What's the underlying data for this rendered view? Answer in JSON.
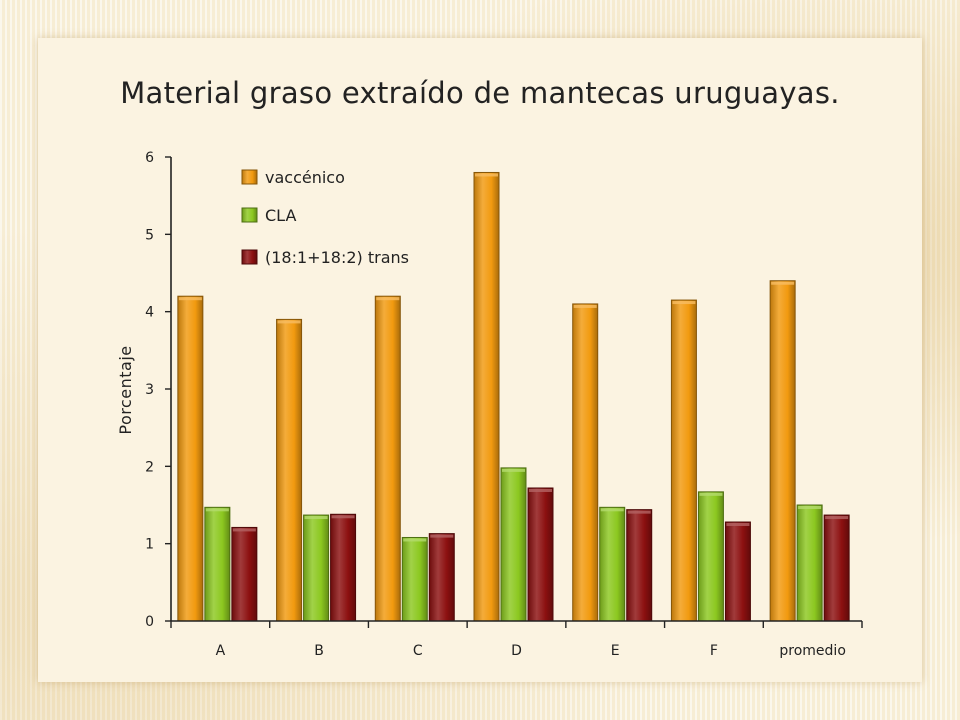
{
  "chart_data": {
    "type": "bar",
    "title": "Material graso extraído de mantecas uruguayas.",
    "xlabel": "",
    "ylabel": "Porcentaje",
    "ylim": [
      0,
      6
    ],
    "yticks": [
      0,
      1,
      2,
      3,
      4,
      5,
      6
    ],
    "grid": false,
    "legend_position": "top-left",
    "categories": [
      "A",
      "B",
      "C",
      "D",
      "E",
      "F",
      "promedio"
    ],
    "series": [
      {
        "name": "vaccénico",
        "color": "#f29a0f",
        "values": [
          4.2,
          3.9,
          4.2,
          5.8,
          4.1,
          4.15,
          4.4
        ]
      },
      {
        "name": "CLA",
        "color": "#8cc820",
        "values": [
          1.47,
          1.37,
          1.08,
          1.98,
          1.47,
          1.67,
          1.5
        ]
      },
      {
        "name": "(18:1+18:2) trans",
        "color": "#8c1010",
        "values": [
          1.21,
          1.38,
          1.13,
          1.72,
          1.44,
          1.28,
          1.37
        ]
      }
    ]
  }
}
